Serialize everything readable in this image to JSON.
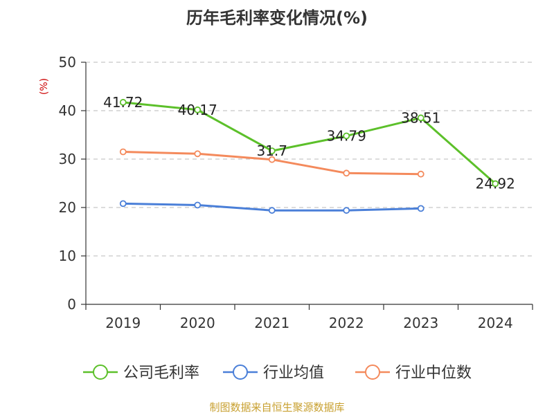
{
  "chart_data": {
    "type": "line",
    "title": "历年毛利率变化情况(%)",
    "ylabel": "(%)",
    "xlabel": "",
    "categories": [
      "2019",
      "2020",
      "2021",
      "2022",
      "2023",
      "2024"
    ],
    "ylim": [
      0,
      50
    ],
    "yticks": [
      "0",
      "10",
      "20",
      "30",
      "40",
      "50"
    ],
    "grid": true,
    "legend_position": "bottom",
    "series": [
      {
        "name": "公司毛利率",
        "color": "#5cc02a",
        "values": [
          41.72,
          40.17,
          31.7,
          34.79,
          38.51,
          24.92
        ],
        "labels": [
          "41.72",
          "40.17",
          "31.7",
          "34.79",
          "38.51",
          "24.92"
        ]
      },
      {
        "name": "行业均值",
        "color": "#4a7fd8",
        "values": [
          20.8,
          20.5,
          19.4,
          19.4,
          19.8,
          null
        ]
      },
      {
        "name": "行业中位数",
        "color": "#f48a5c",
        "values": [
          31.5,
          31.1,
          29.9,
          27.1,
          26.9,
          null
        ]
      }
    ]
  },
  "source": "制图数据来自恒生聚源数据库"
}
